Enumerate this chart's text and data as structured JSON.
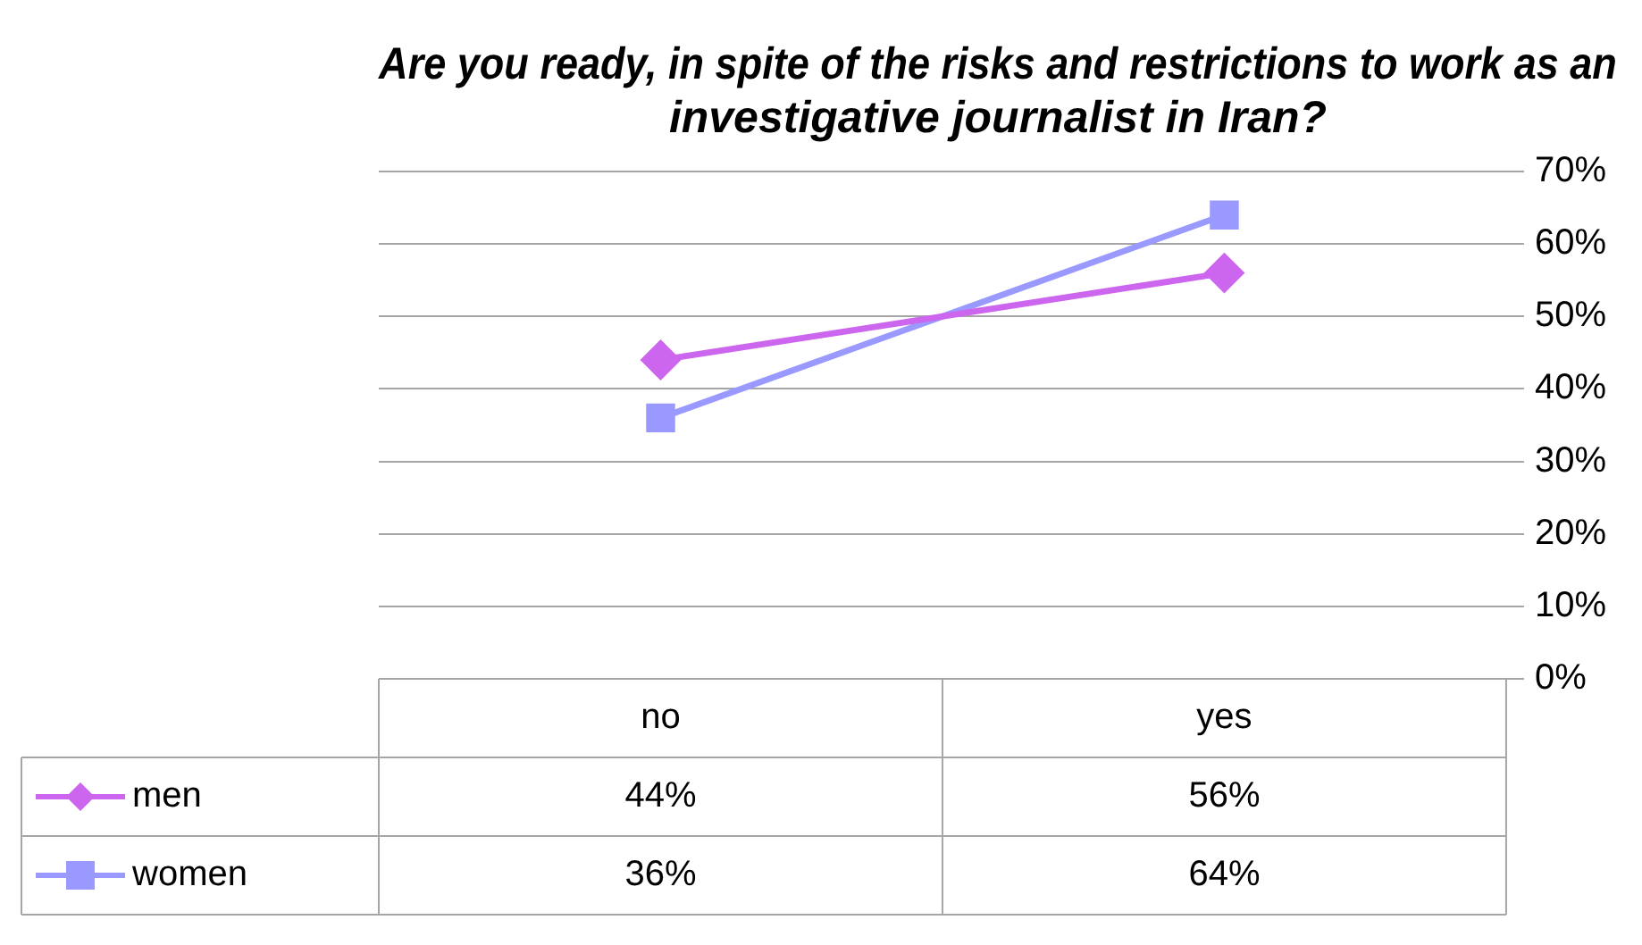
{
  "chart_data": {
    "type": "line",
    "title": "Are you ready, in spite of the risks and restrictions to work as an investigative journalist in Iran?",
    "categories": [
      "no",
      "yes"
    ],
    "series": [
      {
        "name": "men",
        "color": "#cc66ee",
        "values": [
          44,
          56
        ],
        "value_labels": [
          "44%",
          "56%"
        ],
        "marker": "diamond"
      },
      {
        "name": "women",
        "color": "#9999ff",
        "values": [
          36,
          64
        ],
        "value_labels": [
          "36%",
          "64%"
        ],
        "marker": "square"
      }
    ],
    "ylim": [
      0,
      70
    ],
    "yticks": [
      {
        "value": 0,
        "label": "0%"
      },
      {
        "value": 10,
        "label": "10%"
      },
      {
        "value": 20,
        "label": "20%"
      },
      {
        "value": 30,
        "label": "30%"
      },
      {
        "value": 40,
        "label": "40%"
      },
      {
        "value": 50,
        "label": "50%"
      },
      {
        "value": 60,
        "label": "60%"
      },
      {
        "value": 70,
        "label": "70%"
      }
    ],
    "grid": "y",
    "legend": "bottom left",
    "data_labels": true
  }
}
